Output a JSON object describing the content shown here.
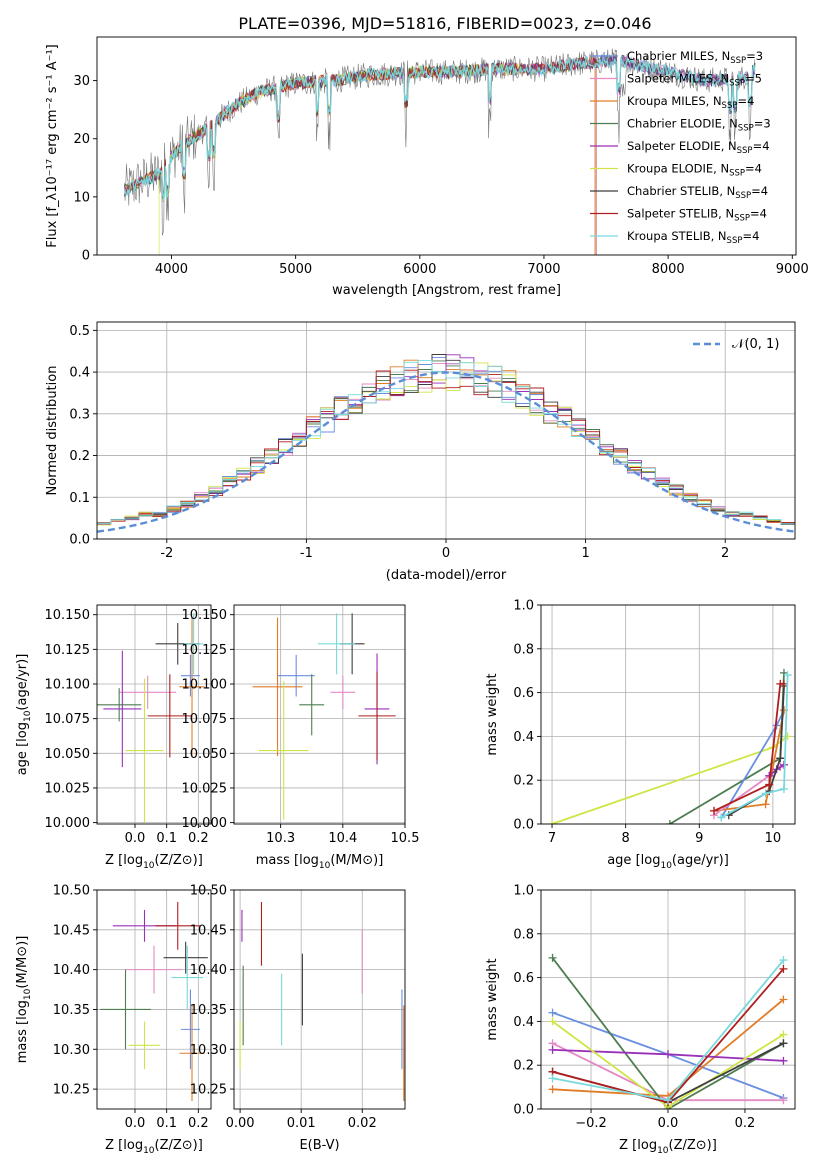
{
  "figure": {
    "title": "PLATE=0396, MJD=51816, FIBERID=0023, z=0.046"
  },
  "colors": {
    "chabrier_miles": "#6a8fe0",
    "salpeter_miles": "#e48ac4",
    "kroupa_miles": "#e07d26",
    "chabrier_elodie": "#4e7d50",
    "salpeter_elodie": "#9a2fb8",
    "kroupa_elodie": "#d0e545",
    "chabrier_stelib": "#3f3f3f",
    "salpeter_stelib": "#b01e1e",
    "kroupa_stelib": "#78d9dc",
    "normal": "#5b8ed6"
  },
  "chart_data": [
    {
      "id": "spectrum",
      "type": "line",
      "xlabel": "wavelength [Angstrom, rest frame]",
      "ylabel": "Flux [f_λ10⁻¹⁷ erg cm⁻² s⁻¹ A⁻¹]",
      "xlim": [
        3400,
        9030
      ],
      "ylim": [
        0,
        37.5
      ],
      "xticks": [
        4000,
        5000,
        6000,
        7000,
        8000,
        9000
      ],
      "yticks": [
        0,
        10,
        20,
        30
      ],
      "grid": false,
      "legend_position": "right",
      "continuum": {
        "x": [
          3620,
          3700,
          3800,
          3900,
          4000,
          4100,
          4300,
          4500,
          4700,
          5000,
          5300,
          5600,
          6000,
          6300,
          6600,
          7000,
          7300,
          7600,
          8000,
          8300,
          8600,
          8700
        ],
        "y": [
          11,
          12,
          13,
          14,
          17,
          19,
          22,
          25.5,
          28,
          29.5,
          30,
          31,
          31.5,
          31.5,
          32,
          32,
          33,
          33.5,
          31.5,
          30,
          30.5,
          32
        ]
      },
      "series": [
        {
          "name": "Chabrier MILES, N_SSP=3",
          "label_main": "Chabrier MILES, N",
          "label_sub": "SSP",
          "label_tail": "=3",
          "color_key": "chabrier_miles",
          "marker": true,
          "xmax": 8700,
          "drops": []
        },
        {
          "name": "Salpeter MILES, N_SSP=5",
          "label_main": "Salpeter MILES, N",
          "label_sub": "SSP",
          "label_tail": "=5",
          "color_key": "salpeter_miles",
          "marker": false,
          "xmax": 8700,
          "drops": []
        },
        {
          "name": "Kroupa MILES, N_SSP=4",
          "label_main": "Kroupa MILES, N",
          "label_sub": "SSP",
          "label_tail": "=4",
          "color_key": "kroupa_miles",
          "marker": false,
          "xmax": 7410,
          "drops": [
            7410
          ]
        },
        {
          "name": "Chabrier ELODIE, N_SSP=3",
          "label_main": "Chabrier ELODIE, N",
          "label_sub": "SSP",
          "label_tail": "=3",
          "color_key": "chabrier_elodie",
          "marker": false,
          "xmax": 8700,
          "drops": []
        },
        {
          "name": "Salpeter ELODIE, N_SSP=4",
          "label_main": "Salpeter ELODIE, N",
          "label_sub": "SSP",
          "label_tail": "=4",
          "color_key": "salpeter_elodie",
          "marker": false,
          "xmax": 8700,
          "drops": []
        },
        {
          "name": "Kroupa ELODIE, N_SSP=4",
          "label_main": "Kroupa ELODIE, N",
          "label_sub": "SSP",
          "label_tail": "=4",
          "color_key": "kroupa_elodie",
          "marker": false,
          "xmax": 6800,
          "drops": [
            3900,
            6800
          ]
        },
        {
          "name": "Chabrier STELIB, N_SSP=4",
          "label_main": "Chabrier STELIB, N",
          "label_sub": "SSP",
          "label_tail": "=4",
          "color_key": "chabrier_stelib",
          "marker": false,
          "xmax": 8700,
          "drops": []
        },
        {
          "name": "Salpeter STELIB, N_SSP=4",
          "label_main": "Salpeter STELIB, N",
          "label_sub": "SSP",
          "label_tail": "=4",
          "color_key": "salpeter_stelib",
          "marker": false,
          "xmax": 7420,
          "drops": [
            7420
          ]
        },
        {
          "name": "Kroupa STELIB, N_SSP=4",
          "label_main": "Kroupa STELIB, N",
          "label_sub": "SSP",
          "label_tail": "=4",
          "color_key": "kroupa_stelib",
          "marker": false,
          "xmax": 8700,
          "drops": []
        }
      ]
    },
    {
      "id": "residuals",
      "type": "histogram",
      "xlabel": "(data-model)/error",
      "ylabel": "Normed distribution",
      "xlim": [
        -2.5,
        2.5
      ],
      "ylim": [
        0,
        0.52
      ],
      "xticks": [
        -2,
        -1,
        0,
        1,
        2
      ],
      "yticks": [
        0.0,
        0.1,
        0.2,
        0.3,
        0.4,
        0.5
      ],
      "grid": true,
      "legend_position": "top-right",
      "bin_width": 0.1,
      "bin_start": -2.5,
      "reference": {
        "name": "N(0,1)",
        "label_main": "𝒩(0, 1)",
        "color_key": "normal",
        "style": "dashed",
        "mean": 0,
        "sigma": 1
      }
    },
    {
      "id": "age_vs_z",
      "type": "errorbar",
      "xlabel_main": "Z [log",
      "xlabel_sub": "10",
      "xlabel_tail": "(Z/Z⊙)]",
      "ylabel_main": "age  [log",
      "ylabel_sub": "10",
      "ylabel_tail": "(age/yr)]",
      "xlim": [
        -0.12,
        0.24
      ],
      "ylim": [
        9.999,
        10.157
      ],
      "xticks": [
        0.0,
        0.1,
        0.2
      ],
      "xticklabels": [
        "0.0",
        "0.1",
        "0.2"
      ],
      "yticks": [
        10.0,
        10.025,
        10.05,
        10.075,
        10.1,
        10.125,
        10.15
      ],
      "yticklabels": [
        "10.000",
        "10.025",
        "10.050",
        "10.075",
        "10.100",
        "10.125",
        "10.150"
      ],
      "grid": true,
      "points": [
        {
          "color_key": "chabrier_miles",
          "x": 0.175,
          "xerr": 0.03,
          "y": 10.106,
          "yerr": 0.015
        },
        {
          "color_key": "salpeter_miles",
          "x": 0.04,
          "xerr": 0.09,
          "y": 10.094,
          "yerr": 0.012
        },
        {
          "color_key": "kroupa_miles",
          "x": 0.18,
          "xerr": 0.04,
          "y": 10.098,
          "yerr": 0.05
        },
        {
          "color_key": "chabrier_elodie",
          "x": -0.05,
          "xerr": 0.07,
          "y": 10.085,
          "yerr": 0.012
        },
        {
          "color_key": "salpeter_elodie",
          "x": -0.04,
          "xerr": 0.06,
          "y": 10.082,
          "yerr": 0.042
        },
        {
          "color_key": "kroupa_elodie",
          "x": 0.03,
          "xerr": 0.06,
          "y": 10.052,
          "yerr": 0.052
        },
        {
          "color_key": "chabrier_stelib",
          "x": 0.135,
          "xerr": 0.07,
          "y": 10.129,
          "yerr": 0.015
        },
        {
          "color_key": "salpeter_stelib",
          "x": 0.11,
          "xerr": 0.07,
          "y": 10.077,
          "yerr": 0.03
        },
        {
          "color_key": "kroupa_stelib",
          "x": 0.185,
          "xerr": 0.03,
          "y": 10.129,
          "yerr": 0.022
        }
      ]
    },
    {
      "id": "age_vs_mass",
      "type": "errorbar",
      "xlabel_main": "mass [log",
      "xlabel_sub": "10",
      "xlabel_tail": "(M/M⊙)]",
      "xlim": [
        10.225,
        10.5
      ],
      "ylim": [
        9.999,
        10.157
      ],
      "xticks": [
        10.3,
        10.4,
        10.5
      ],
      "xticklabels": [
        "10.3",
        "10.4",
        "10.5"
      ],
      "yticks": [
        10.0,
        10.025,
        10.05,
        10.075,
        10.1,
        10.125,
        10.15
      ],
      "yticklabels": [
        "10.000",
        "10.025",
        "10.050",
        "10.075",
        "10.100",
        "10.125",
        "10.150"
      ],
      "grid": true,
      "points": [
        {
          "color_key": "chabrier_miles",
          "x": 10.325,
          "xerr": 0.03,
          "y": 10.106,
          "yerr": 0.015
        },
        {
          "color_key": "salpeter_miles",
          "x": 10.4,
          "xerr": 0.02,
          "y": 10.094,
          "yerr": 0.012
        },
        {
          "color_key": "kroupa_miles",
          "x": 10.295,
          "xerr": 0.04,
          "y": 10.098,
          "yerr": 0.05
        },
        {
          "color_key": "chabrier_elodie",
          "x": 10.35,
          "xerr": 0.02,
          "y": 10.085,
          "yerr": 0.022
        },
        {
          "color_key": "salpeter_elodie",
          "x": 10.455,
          "xerr": 0.02,
          "y": 10.082,
          "yerr": 0.04
        },
        {
          "color_key": "kroupa_elodie",
          "x": 10.305,
          "xerr": 0.04,
          "y": 10.052,
          "yerr": 0.05
        },
        {
          "color_key": "chabrier_stelib",
          "x": 10.415,
          "xerr": 0.02,
          "y": 10.129,
          "yerr": 0.022
        },
        {
          "color_key": "salpeter_stelib",
          "x": 10.455,
          "xerr": 0.03,
          "y": 10.077,
          "yerr": 0.032
        },
        {
          "color_key": "kroupa_stelib",
          "x": 10.39,
          "xerr": 0.03,
          "y": 10.129,
          "yerr": 0.022
        }
      ]
    },
    {
      "id": "weight_vs_age",
      "type": "line",
      "xlabel_main": "age  [log",
      "xlabel_sub": "10",
      "xlabel_tail": "(age/yr)]",
      "ylabel": "mass weight",
      "xlim": [
        6.85,
        10.3
      ],
      "ylim": [
        0.0,
        1.0
      ],
      "xticks": [
        7,
        8,
        9,
        10
      ],
      "xticklabels": [
        "7",
        "8",
        "9",
        "10"
      ],
      "yticks": [
        0.0,
        0.2,
        0.4,
        0.6,
        0.8,
        1.0
      ],
      "yticklabels": [
        "0.0",
        "0.2",
        "0.4",
        "0.6",
        "0.8",
        "1.0"
      ],
      "grid": true,
      "series": [
        {
          "color_key": "kroupa_elodie",
          "x": [
            7.0,
            10.0,
            10.2
          ],
          "y": [
            0.0,
            0.35,
            0.4
          ]
        },
        {
          "color_key": "chabrier_elodie",
          "x": [
            8.6,
            10.1,
            10.15
          ],
          "y": [
            0.0,
            0.3,
            0.69
          ]
        },
        {
          "color_key": "chabrier_miles",
          "x": [
            9.3,
            10.05,
            10.15
          ],
          "y": [
            0.03,
            0.45,
            0.52
          ]
        },
        {
          "color_key": "kroupa_miles",
          "x": [
            9.2,
            9.9,
            10.15
          ],
          "y": [
            0.06,
            0.09,
            0.52
          ]
        },
        {
          "color_key": "salpeter_miles",
          "x": [
            9.2,
            9.95,
            10.1,
            10.15
          ],
          "y": [
            0.04,
            0.22,
            0.26,
            0.27
          ]
        },
        {
          "color_key": "salpeter_elodie",
          "x": [
            9.95,
            10.05,
            10.15
          ],
          "y": [
            0.22,
            0.25,
            0.27
          ]
        },
        {
          "color_key": "chabrier_stelib",
          "x": [
            9.4,
            9.95,
            10.1,
            10.15
          ],
          "y": [
            0.04,
            0.15,
            0.3,
            0.63
          ]
        },
        {
          "color_key": "salpeter_stelib",
          "x": [
            9.2,
            9.95,
            10.1,
            10.15
          ],
          "y": [
            0.06,
            0.18,
            0.64,
            0.64
          ]
        },
        {
          "color_key": "kroupa_stelib",
          "x": [
            9.3,
            9.9,
            10.15,
            10.2
          ],
          "y": [
            0.03,
            0.14,
            0.16,
            0.68
          ]
        }
      ]
    },
    {
      "id": "mass_vs_z",
      "type": "errorbar",
      "xlabel_main": "Z [log",
      "xlabel_sub": "10",
      "xlabel_tail": "(Z/Z⊙)]",
      "ylabel_main": "mass [log",
      "ylabel_sub": "10",
      "ylabel_tail": "(M/M⊙)]",
      "xlim": [
        -0.12,
        0.24
      ],
      "ylim": [
        10.225,
        10.5
      ],
      "xticks": [
        0.0,
        0.1,
        0.2
      ],
      "xticklabels": [
        "0.0",
        "0.1",
        "0.2"
      ],
      "yticks": [
        10.25,
        10.3,
        10.35,
        10.4,
        10.45,
        10.5
      ],
      "yticklabels": [
        "10.25",
        "10.30",
        "10.35",
        "10.40",
        "10.45",
        "10.50"
      ],
      "grid": true,
      "points": [
        {
          "color_key": "chabrier_miles",
          "x": 0.175,
          "xerr": 0.03,
          "y": 10.325,
          "yerr": 0.05
        },
        {
          "color_key": "salpeter_miles",
          "x": 0.06,
          "xerr": 0.09,
          "y": 10.4,
          "yerr": 0.03
        },
        {
          "color_key": "kroupa_miles",
          "x": 0.18,
          "xerr": 0.04,
          "y": 10.295,
          "yerr": 0.06
        },
        {
          "color_key": "chabrier_elodie",
          "x": -0.03,
          "xerr": 0.08,
          "y": 10.35,
          "yerr": 0.05
        },
        {
          "color_key": "salpeter_elodie",
          "x": 0.03,
          "xerr": 0.1,
          "y": 10.455,
          "yerr": 0.02
        },
        {
          "color_key": "kroupa_elodie",
          "x": 0.03,
          "xerr": 0.05,
          "y": 10.305,
          "yerr": 0.03
        },
        {
          "color_key": "chabrier_stelib",
          "x": 0.16,
          "xerr": 0.07,
          "y": 10.415,
          "yerr": 0.02
        },
        {
          "color_key": "salpeter_stelib",
          "x": 0.135,
          "xerr": 0.07,
          "y": 10.455,
          "yerr": 0.03
        },
        {
          "color_key": "kroupa_stelib",
          "x": 0.165,
          "xerr": 0.05,
          "y": 10.39,
          "yerr": 0.04
        }
      ]
    },
    {
      "id": "mass_vs_ebv",
      "type": "errorbar",
      "xlabel": "E(B-V)",
      "xlim": [
        -0.001,
        0.027
      ],
      "ylim": [
        10.225,
        10.5
      ],
      "xticks": [
        0.0,
        0.01,
        0.02
      ],
      "xticklabels": [
        "0.00",
        "0.01",
        "0.02"
      ],
      "yticks": [
        10.25,
        10.3,
        10.35,
        10.4,
        10.45,
        10.5
      ],
      "yticklabels": [
        "10.25",
        "10.30",
        "10.35",
        "10.40",
        "10.45",
        "10.50"
      ],
      "grid": true,
      "points": [
        {
          "color_key": "chabrier_miles",
          "x": 0.0265,
          "xerr": 0,
          "y": 10.325,
          "yerr": 0.05
        },
        {
          "color_key": "salpeter_miles",
          "x": 0.02,
          "xerr": 0,
          "y": 10.41,
          "yerr": 0.04
        },
        {
          "color_key": "kroupa_miles",
          "x": 0.0268,
          "xerr": 0,
          "y": 10.295,
          "yerr": 0.06
        },
        {
          "color_key": "chabrier_elodie",
          "x": 0.0005,
          "xerr": 0,
          "y": 10.355,
          "yerr": 0.05
        },
        {
          "color_key": "salpeter_elodie",
          "x": 0.0003,
          "xerr": 0,
          "y": 10.455,
          "yerr": 0.02
        },
        {
          "color_key": "kroupa_elodie",
          "x": 0.0,
          "xerr": 0,
          "y": 10.305,
          "yerr": 0.03
        },
        {
          "color_key": "chabrier_stelib",
          "x": 0.0102,
          "xerr": 0,
          "y": 10.375,
          "yerr": 0.045
        },
        {
          "color_key": "salpeter_stelib",
          "x": 0.0035,
          "xerr": 0,
          "y": 10.445,
          "yerr": 0.04
        },
        {
          "color_key": "kroupa_stelib",
          "x": 0.0068,
          "xerr": 0,
          "y": 10.35,
          "yerr": 0.045
        }
      ]
    },
    {
      "id": "weight_vs_z",
      "type": "line",
      "xlabel_main": "Z [log",
      "xlabel_sub": "10",
      "xlabel_tail": "(Z/Z⊙)]",
      "ylabel": "mass weight",
      "xlim": [
        -0.33,
        0.33
      ],
      "ylim": [
        0.0,
        1.0
      ],
      "xticks": [
        -0.2,
        0.0,
        0.2
      ],
      "xticklabels": [
        "−0.2",
        "0.0",
        "0.2"
      ],
      "yticks": [
        0.0,
        0.2,
        0.4,
        0.6,
        0.8,
        1.0
      ],
      "yticklabels": [
        "0.0",
        "0.2",
        "0.4",
        "0.6",
        "0.8",
        "1.0"
      ],
      "grid": true,
      "series": [
        {
          "color_key": "chabrier_miles",
          "x": [
            -0.3,
            0.0,
            0.3
          ],
          "y": [
            0.44,
            0.25,
            0.05
          ]
        },
        {
          "color_key": "salpeter_miles",
          "x": [
            -0.3,
            0.0,
            0.3
          ],
          "y": [
            0.3,
            0.04,
            0.04
          ]
        },
        {
          "color_key": "kroupa_miles",
          "x": [
            -0.3,
            0.0,
            0.3
          ],
          "y": [
            0.09,
            0.06,
            0.5
          ]
        },
        {
          "color_key": "chabrier_elodie",
          "x": [
            -0.3,
            0.0,
            0.3
          ],
          "y": [
            0.69,
            0.0,
            0.3
          ]
        },
        {
          "color_key": "salpeter_elodie",
          "x": [
            -0.3,
            0.0,
            0.3
          ],
          "y": [
            0.27,
            0.25,
            0.22
          ]
        },
        {
          "color_key": "kroupa_elodie",
          "x": [
            -0.3,
            0.0,
            0.3
          ],
          "y": [
            0.4,
            0.01,
            0.34
          ]
        },
        {
          "color_key": "chabrier_stelib",
          "x": [
            -0.3,
            0.0,
            0.3
          ],
          "y": [
            0.17,
            0.03,
            0.3
          ]
        },
        {
          "color_key": "salpeter_stelib",
          "x": [
            -0.3,
            0.0,
            0.3
          ],
          "y": [
            0.17,
            0.03,
            0.64
          ]
        },
        {
          "color_key": "kroupa_stelib",
          "x": [
            -0.3,
            0.0,
            0.3
          ],
          "y": [
            0.14,
            0.04,
            0.68
          ]
        }
      ]
    }
  ]
}
